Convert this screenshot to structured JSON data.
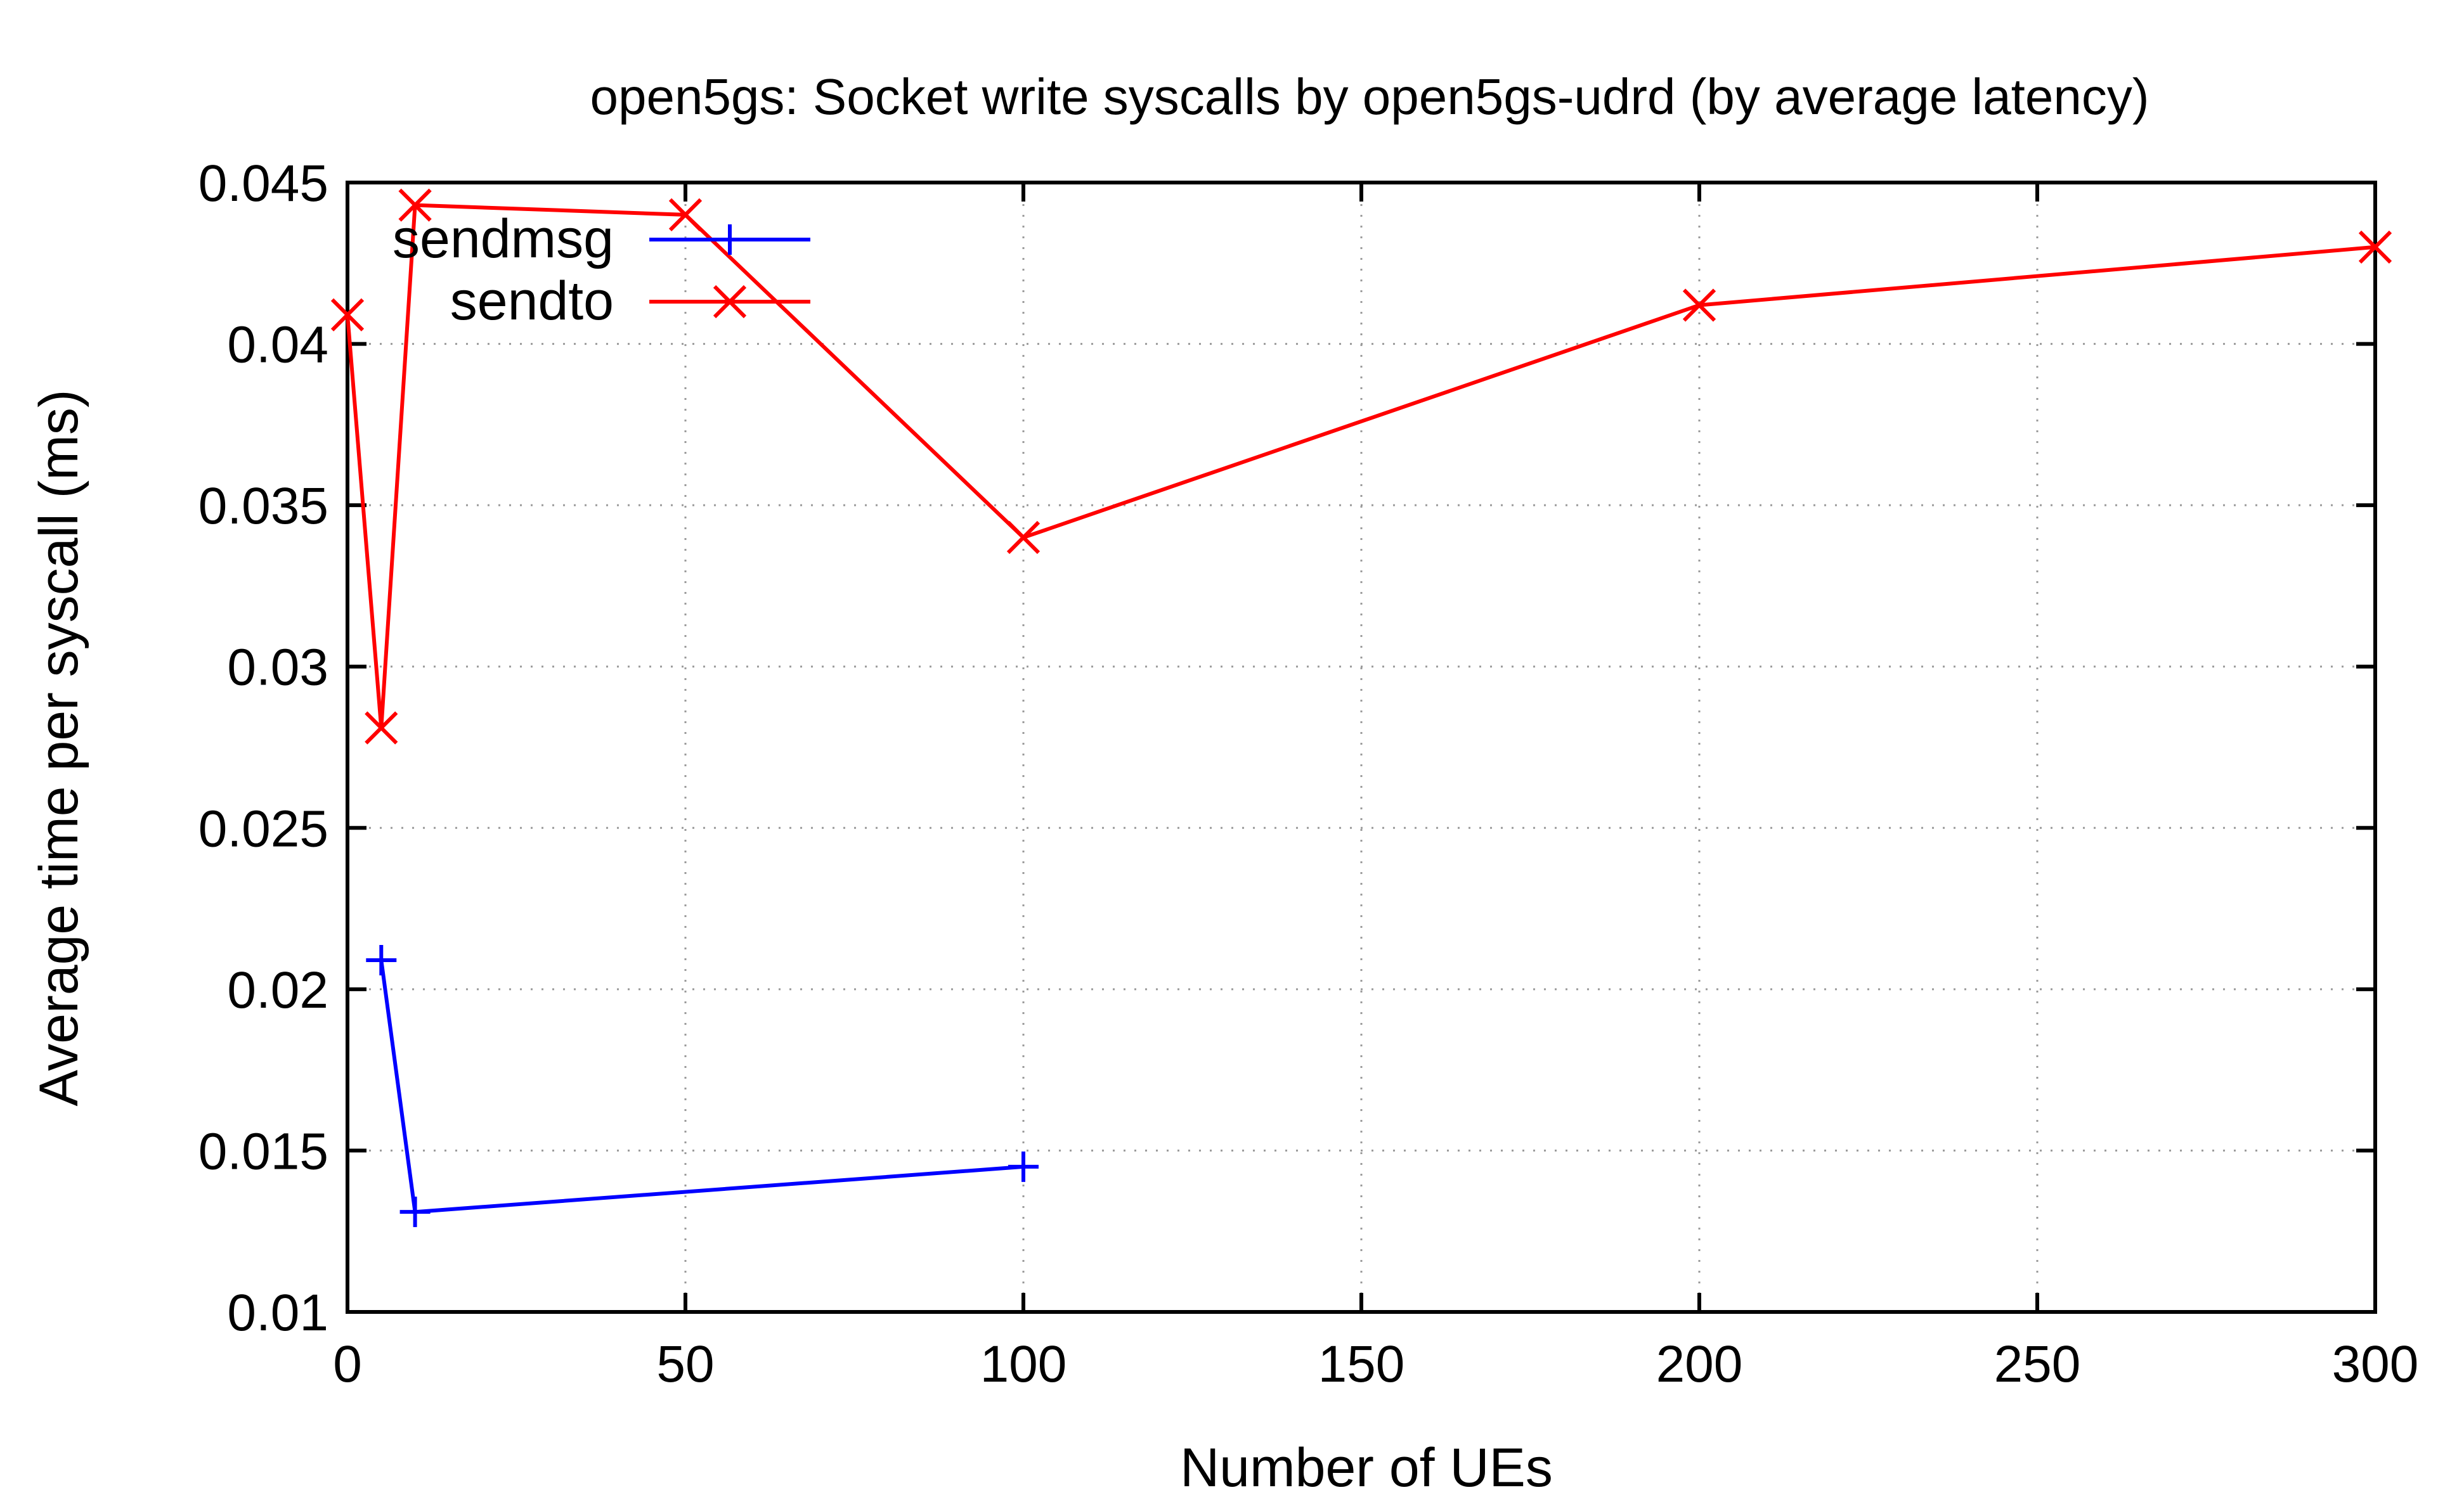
{
  "chart_data": {
    "type": "line",
    "title": "open5gs: Socket write syscalls by open5gs-udrd (by average latency)",
    "xlabel": "Number of UEs",
    "ylabel": "Average time per syscall (ms)",
    "xlim": [
      0,
      300
    ],
    "ylim": [
      0.01,
      0.045
    ],
    "xticks": [
      0,
      50,
      100,
      150,
      200,
      250,
      300
    ],
    "xtick_labels": [
      "0",
      "50",
      "100",
      "150",
      "200",
      "250",
      "300"
    ],
    "yticks": [
      0.01,
      0.015,
      0.02,
      0.025,
      0.03,
      0.035,
      0.04,
      0.045
    ],
    "ytick_labels": [
      "0.01",
      "0.015",
      "0.02",
      "0.025",
      "0.03",
      "0.035",
      "0.04",
      "0.045"
    ],
    "grid": true,
    "legend_position": "top-left",
    "series": [
      {
        "name": "sendmsg",
        "color": "#0000ff",
        "marker": "plus",
        "x": [
          5,
          10,
          100
        ],
        "y": [
          0.0209,
          0.0131,
          0.0145
        ]
      },
      {
        "name": "sendto",
        "color": "#ff0000",
        "marker": "cross",
        "x": [
          0,
          5,
          10,
          50,
          100,
          200,
          300
        ],
        "y": [
          0.0409,
          0.0281,
          0.0443,
          0.044,
          0.034,
          0.0412,
          0.043
        ]
      }
    ]
  }
}
